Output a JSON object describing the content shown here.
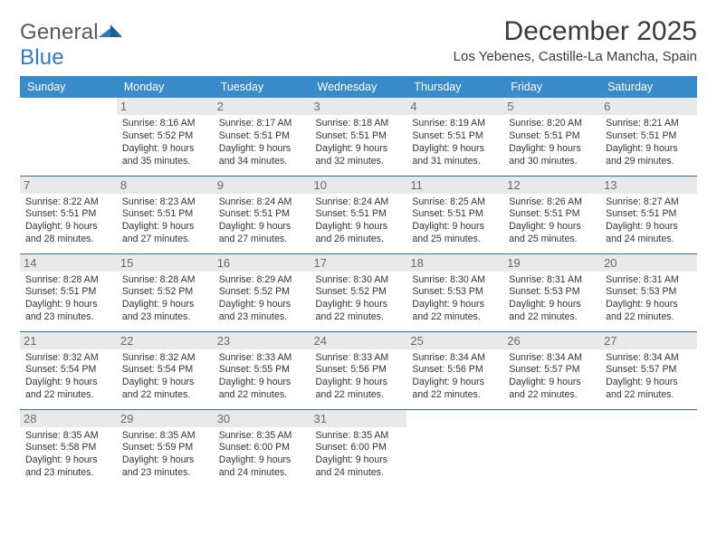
{
  "brand": {
    "name_a": "General",
    "name_b": "Blue"
  },
  "title": "December 2025",
  "subtitle": "Los Yebenes, Castille-La Mancha, Spain",
  "colors": {
    "header_bg": "#3a8bc9",
    "header_fg": "#ffffff",
    "rule": "#2f6fa3",
    "daynum_bg": "#e9e9e9",
    "daynum_fg": "#6b6b6b",
    "text": "#333333",
    "title_fg": "#3a3a3a",
    "logo_gray": "#5a5a5a",
    "logo_blue": "#2a7bbf"
  },
  "day_headers": [
    "Sunday",
    "Monday",
    "Tuesday",
    "Wednesday",
    "Thursday",
    "Friday",
    "Saturday"
  ],
  "weeks": [
    [
      {
        "n": "",
        "sr": "",
        "ss": "",
        "dl": ""
      },
      {
        "n": "1",
        "sr": "8:16 AM",
        "ss": "5:52 PM",
        "dl": "9 hours and 35 minutes."
      },
      {
        "n": "2",
        "sr": "8:17 AM",
        "ss": "5:51 PM",
        "dl": "9 hours and 34 minutes."
      },
      {
        "n": "3",
        "sr": "8:18 AM",
        "ss": "5:51 PM",
        "dl": "9 hours and 32 minutes."
      },
      {
        "n": "4",
        "sr": "8:19 AM",
        "ss": "5:51 PM",
        "dl": "9 hours and 31 minutes."
      },
      {
        "n": "5",
        "sr": "8:20 AM",
        "ss": "5:51 PM",
        "dl": "9 hours and 30 minutes."
      },
      {
        "n": "6",
        "sr": "8:21 AM",
        "ss": "5:51 PM",
        "dl": "9 hours and 29 minutes."
      }
    ],
    [
      {
        "n": "7",
        "sr": "8:22 AM",
        "ss": "5:51 PM",
        "dl": "9 hours and 28 minutes."
      },
      {
        "n": "8",
        "sr": "8:23 AM",
        "ss": "5:51 PM",
        "dl": "9 hours and 27 minutes."
      },
      {
        "n": "9",
        "sr": "8:24 AM",
        "ss": "5:51 PM",
        "dl": "9 hours and 27 minutes."
      },
      {
        "n": "10",
        "sr": "8:24 AM",
        "ss": "5:51 PM",
        "dl": "9 hours and 26 minutes."
      },
      {
        "n": "11",
        "sr": "8:25 AM",
        "ss": "5:51 PM",
        "dl": "9 hours and 25 minutes."
      },
      {
        "n": "12",
        "sr": "8:26 AM",
        "ss": "5:51 PM",
        "dl": "9 hours and 25 minutes."
      },
      {
        "n": "13",
        "sr": "8:27 AM",
        "ss": "5:51 PM",
        "dl": "9 hours and 24 minutes."
      }
    ],
    [
      {
        "n": "14",
        "sr": "8:28 AM",
        "ss": "5:51 PM",
        "dl": "9 hours and 23 minutes."
      },
      {
        "n": "15",
        "sr": "8:28 AM",
        "ss": "5:52 PM",
        "dl": "9 hours and 23 minutes."
      },
      {
        "n": "16",
        "sr": "8:29 AM",
        "ss": "5:52 PM",
        "dl": "9 hours and 23 minutes."
      },
      {
        "n": "17",
        "sr": "8:30 AM",
        "ss": "5:52 PM",
        "dl": "9 hours and 22 minutes."
      },
      {
        "n": "18",
        "sr": "8:30 AM",
        "ss": "5:53 PM",
        "dl": "9 hours and 22 minutes."
      },
      {
        "n": "19",
        "sr": "8:31 AM",
        "ss": "5:53 PM",
        "dl": "9 hours and 22 minutes."
      },
      {
        "n": "20",
        "sr": "8:31 AM",
        "ss": "5:53 PM",
        "dl": "9 hours and 22 minutes."
      }
    ],
    [
      {
        "n": "21",
        "sr": "8:32 AM",
        "ss": "5:54 PM",
        "dl": "9 hours and 22 minutes."
      },
      {
        "n": "22",
        "sr": "8:32 AM",
        "ss": "5:54 PM",
        "dl": "9 hours and 22 minutes."
      },
      {
        "n": "23",
        "sr": "8:33 AM",
        "ss": "5:55 PM",
        "dl": "9 hours and 22 minutes."
      },
      {
        "n": "24",
        "sr": "8:33 AM",
        "ss": "5:56 PM",
        "dl": "9 hours and 22 minutes."
      },
      {
        "n": "25",
        "sr": "8:34 AM",
        "ss": "5:56 PM",
        "dl": "9 hours and 22 minutes."
      },
      {
        "n": "26",
        "sr": "8:34 AM",
        "ss": "5:57 PM",
        "dl": "9 hours and 22 minutes."
      },
      {
        "n": "27",
        "sr": "8:34 AM",
        "ss": "5:57 PM",
        "dl": "9 hours and 22 minutes."
      }
    ],
    [
      {
        "n": "28",
        "sr": "8:35 AM",
        "ss": "5:58 PM",
        "dl": "9 hours and 23 minutes."
      },
      {
        "n": "29",
        "sr": "8:35 AM",
        "ss": "5:59 PM",
        "dl": "9 hours and 23 minutes."
      },
      {
        "n": "30",
        "sr": "8:35 AM",
        "ss": "6:00 PM",
        "dl": "9 hours and 24 minutes."
      },
      {
        "n": "31",
        "sr": "8:35 AM",
        "ss": "6:00 PM",
        "dl": "9 hours and 24 minutes."
      },
      {
        "n": "",
        "sr": "",
        "ss": "",
        "dl": ""
      },
      {
        "n": "",
        "sr": "",
        "ss": "",
        "dl": ""
      },
      {
        "n": "",
        "sr": "",
        "ss": "",
        "dl": ""
      }
    ]
  ],
  "labels": {
    "sunrise": "Sunrise: ",
    "sunset": "Sunset: ",
    "daylight": "Daylight: "
  }
}
